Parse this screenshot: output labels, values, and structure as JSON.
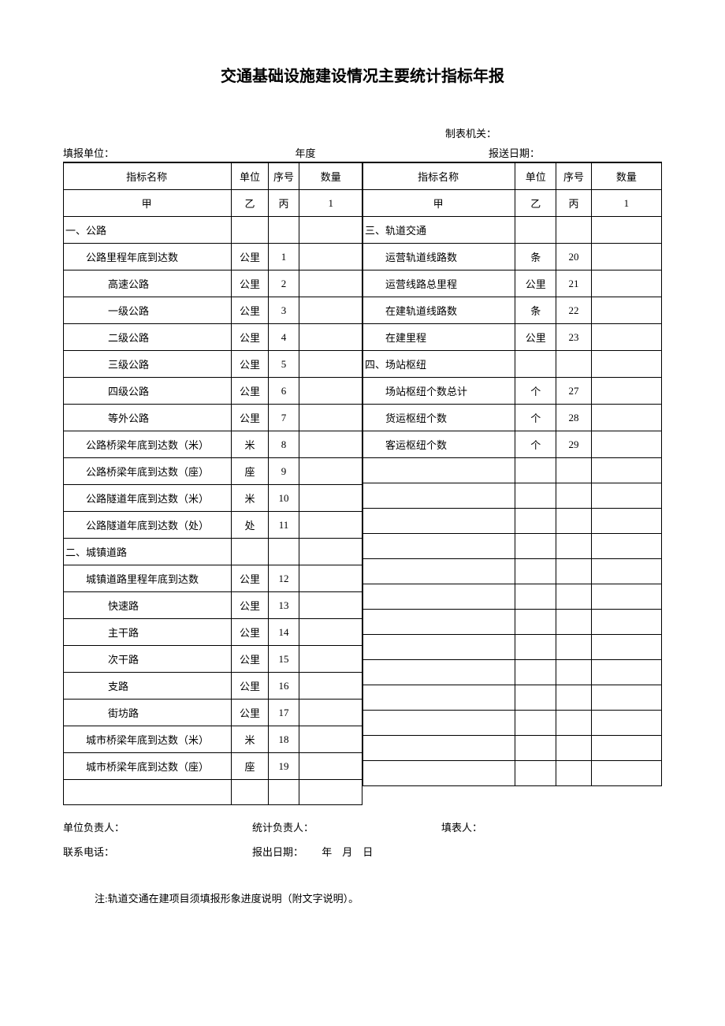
{
  "title": "交通基础设施建设情况主要统计指标年报",
  "header": {
    "maker_label": "制表机关：",
    "filler_label": "填报单位：",
    "year_label": "年度",
    "send_date_label": "报送日期："
  },
  "table_headers": {
    "name": "指标名称",
    "unit": "单位",
    "seq": "序号",
    "qty": "数量",
    "jia": "甲",
    "yi": "乙",
    "bing": "丙",
    "one": "1"
  },
  "left_rows": [
    {
      "name": "一、公路",
      "unit": "",
      "seq": "",
      "qty": "",
      "class": "section-head"
    },
    {
      "name": "公路里程年底到达数",
      "unit": "公里",
      "seq": "1",
      "qty": "",
      "class": "indent-1"
    },
    {
      "name": "高速公路",
      "unit": "公里",
      "seq": "2",
      "qty": "",
      "class": "indent-2"
    },
    {
      "name": "一级公路",
      "unit": "公里",
      "seq": "3",
      "qty": "",
      "class": "indent-2"
    },
    {
      "name": "二级公路",
      "unit": "公里",
      "seq": "4",
      "qty": "",
      "class": "indent-2"
    },
    {
      "name": "三级公路",
      "unit": "公里",
      "seq": "5",
      "qty": "",
      "class": "indent-2"
    },
    {
      "name": "四级公路",
      "unit": "公里",
      "seq": "6",
      "qty": "",
      "class": "indent-2"
    },
    {
      "name": "等外公路",
      "unit": "公里",
      "seq": "7",
      "qty": "",
      "class": "indent-2"
    },
    {
      "name": "公路桥梁年底到达数（米）",
      "unit": "米",
      "seq": "8",
      "qty": "",
      "class": "indent-1"
    },
    {
      "name": "公路桥梁年底到达数（座）",
      "unit": "座",
      "seq": "9",
      "qty": "",
      "class": "indent-1"
    },
    {
      "name": "公路隧道年底到达数（米）",
      "unit": "米",
      "seq": "10",
      "qty": "",
      "class": "indent-1"
    },
    {
      "name": "公路隧道年底到达数（处）",
      "unit": "处",
      "seq": "11",
      "qty": "",
      "class": "indent-1"
    },
    {
      "name": "二、城镇道路",
      "unit": "",
      "seq": "",
      "qty": "",
      "class": "section-head"
    },
    {
      "name": "城镇道路里程年底到达数",
      "unit": "公里",
      "seq": "12",
      "qty": "",
      "class": "indent-1"
    },
    {
      "name": "快速路",
      "unit": "公里",
      "seq": "13",
      "qty": "",
      "class": "indent-2"
    },
    {
      "name": "主干路",
      "unit": "公里",
      "seq": "14",
      "qty": "",
      "class": "indent-2"
    },
    {
      "name": "次干路",
      "unit": "公里",
      "seq": "15",
      "qty": "",
      "class": "indent-2"
    },
    {
      "name": "支路",
      "unit": "公里",
      "seq": "16",
      "qty": "",
      "class": "indent-2"
    },
    {
      "name": "街坊路",
      "unit": "公里",
      "seq": "17",
      "qty": "",
      "class": "indent-2"
    },
    {
      "name": "城市桥梁年底到达数（米）",
      "unit": "米",
      "seq": "18",
      "qty": "",
      "class": "indent-1"
    },
    {
      "name": "城市桥梁年底到达数（座）",
      "unit": "座",
      "seq": "19",
      "qty": "",
      "class": "indent-1"
    },
    {
      "name": "",
      "unit": "",
      "seq": "",
      "qty": "",
      "class": ""
    }
  ],
  "right_rows": [
    {
      "name": "三、轨道交通",
      "unit": "",
      "seq": "",
      "qty": "",
      "class": "section-head"
    },
    {
      "name": "运营轨道线路数",
      "unit": "条",
      "seq": "20",
      "qty": "",
      "class": "indent-1"
    },
    {
      "name": "运营线路总里程",
      "unit": "公里",
      "seq": "21",
      "qty": "",
      "class": "indent-1"
    },
    {
      "name": "在建轨道线路数",
      "unit": "条",
      "seq": "22",
      "qty": "",
      "class": "indent-1"
    },
    {
      "name": "在建里程",
      "unit": "公里",
      "seq": "23",
      "qty": "",
      "class": "indent-1"
    },
    {
      "name": "四、场站枢纽",
      "unit": "",
      "seq": "",
      "qty": "",
      "class": "section-head"
    },
    {
      "name": "场站枢纽个数总计",
      "unit": "个",
      "seq": "27",
      "qty": "",
      "class": "indent-1"
    },
    {
      "name": "货运枢纽个数",
      "unit": "个",
      "seq": "28",
      "qty": "",
      "class": "indent-1"
    },
    {
      "name": "客运枢纽个数",
      "unit": "个",
      "seq": "29",
      "qty": "",
      "class": "indent-1"
    },
    {
      "name": "",
      "unit": "",
      "seq": "",
      "qty": "",
      "class": ""
    },
    {
      "name": "",
      "unit": "",
      "seq": "",
      "qty": "",
      "class": ""
    },
    {
      "name": "",
      "unit": "",
      "seq": "",
      "qty": "",
      "class": ""
    },
    {
      "name": "",
      "unit": "",
      "seq": "",
      "qty": "",
      "class": ""
    },
    {
      "name": "",
      "unit": "",
      "seq": "",
      "qty": "",
      "class": ""
    },
    {
      "name": "",
      "unit": "",
      "seq": "",
      "qty": "",
      "class": ""
    },
    {
      "name": "",
      "unit": "",
      "seq": "",
      "qty": "",
      "class": ""
    },
    {
      "name": "",
      "unit": "",
      "seq": "",
      "qty": "",
      "class": ""
    },
    {
      "name": "",
      "unit": "",
      "seq": "",
      "qty": "",
      "class": ""
    },
    {
      "name": "",
      "unit": "",
      "seq": "",
      "qty": "",
      "class": ""
    },
    {
      "name": "",
      "unit": "",
      "seq": "",
      "qty": "",
      "class": ""
    },
    {
      "name": "",
      "unit": "",
      "seq": "",
      "qty": "",
      "class": ""
    },
    {
      "name": "",
      "unit": "",
      "seq": "",
      "qty": "",
      "class": ""
    }
  ],
  "footer": {
    "unit_head": "单位负责人：",
    "stat_head": "统计负责人：",
    "filler": "填表人：",
    "phone": "联系电话：",
    "report_date_label": "报出日期：",
    "date_format": "年　月　日"
  },
  "note": "注:轨道交通在建项目须填报形象进度说明（附文字说明）。"
}
